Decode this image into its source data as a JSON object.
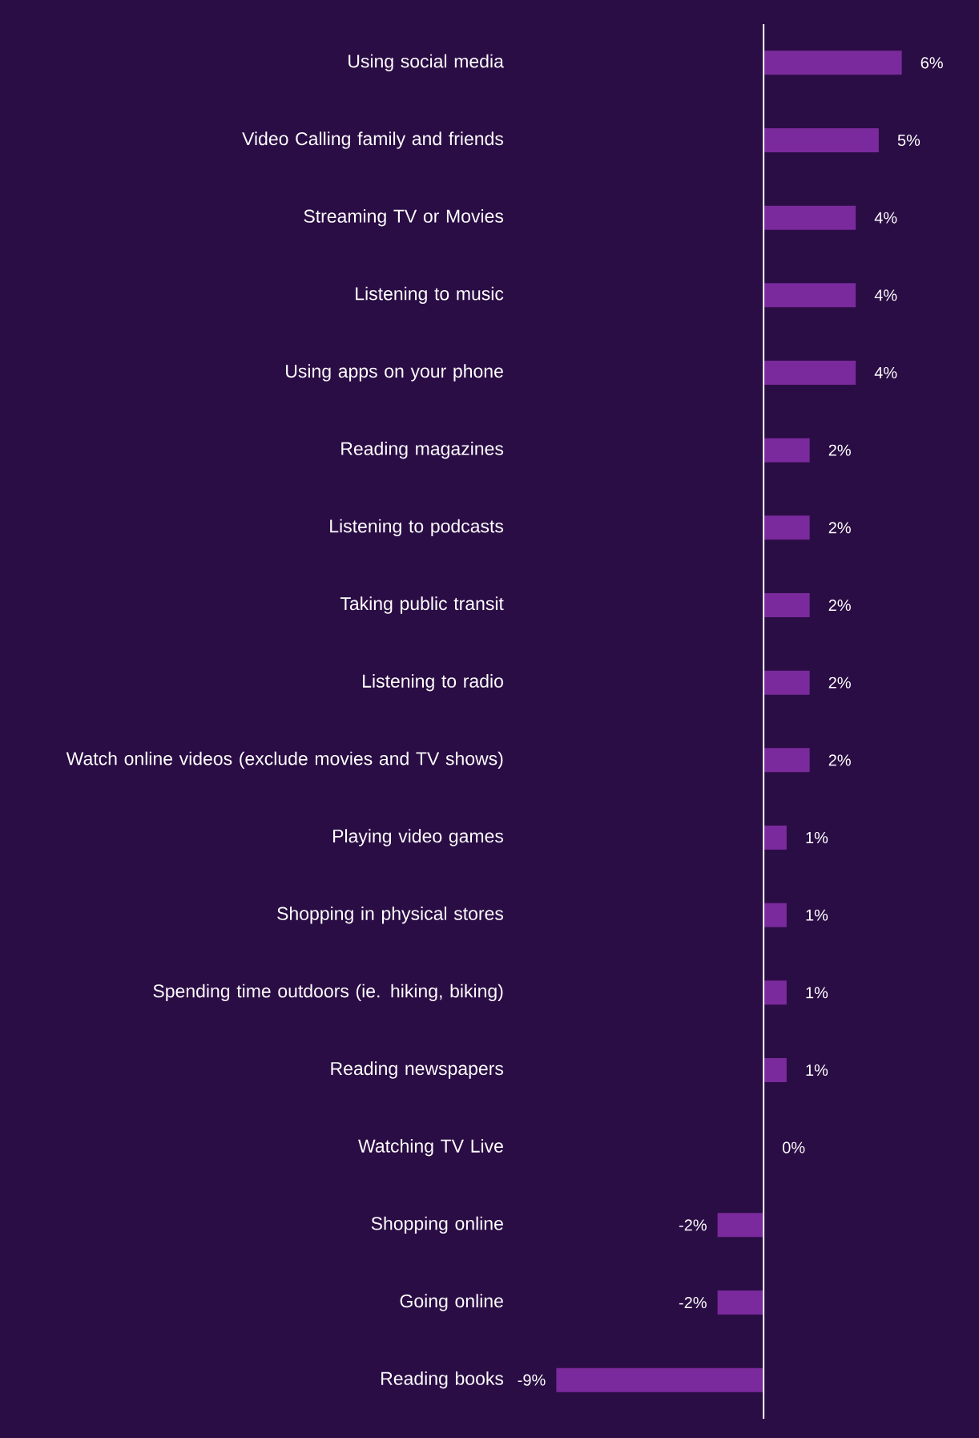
{
  "chart_data": {
    "type": "bar",
    "orientation": "horizontal",
    "tick_labels": "y",
    "color": "#7a2a9c",
    "categories": [
      "Using social media",
      "Video Calling family and friends",
      "Streaming TV or Movies",
      "Listening to music",
      "Using apps on your phone",
      "Reading magazines",
      "Listening to podcasts",
      "Taking public transit",
      "Listening to radio",
      "Watch online videos (exclude movies and TV shows)",
      "Playing video games",
      "Shopping in physical stores",
      "Spending time outdoors (ie. hiking, biking)",
      "Reading newspapers",
      "Watching TV Live",
      "Shopping online",
      "Going online",
      "Reading books"
    ],
    "values": [
      6,
      5,
      4,
      4,
      4,
      2,
      2,
      2,
      2,
      2,
      1,
      1,
      1,
      1,
      0,
      -2,
      -2,
      -9
    ],
    "value_labels": [
      "6%",
      "5%",
      "4%",
      "4%",
      "4%",
      "2%",
      "2%",
      "2%",
      "2%",
      "2%",
      "1%",
      "1%",
      "1%",
      "1%",
      "0%",
      "-2%",
      "-2%",
      "-9%"
    ]
  }
}
